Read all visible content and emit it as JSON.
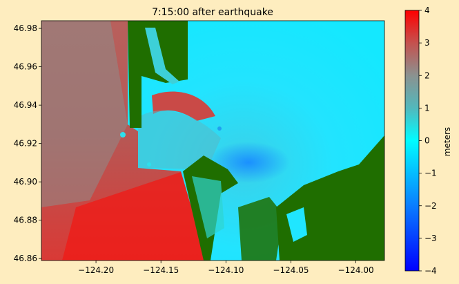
{
  "chart_data": {
    "type": "heatmap",
    "title": "7:15:00 after earthquake",
    "xlabel": "",
    "ylabel": "",
    "xlim": [
      -124.242,
      -123.978
    ],
    "ylim": [
      46.859,
      46.984
    ],
    "x_ticks": [
      -124.2,
      -124.15,
      -124.1,
      -124.05,
      -124.0
    ],
    "x_tick_labels": [
      "−124.20",
      "−124.15",
      "−124.10",
      "−124.05",
      "−124.00"
    ],
    "y_ticks": [
      46.86,
      46.88,
      46.9,
      46.92,
      46.94,
      46.96,
      46.98
    ],
    "y_tick_labels": [
      "46.86",
      "46.88",
      "46.90",
      "46.92",
      "46.94",
      "46.96",
      "46.98"
    ],
    "colorbar": {
      "label": "meters",
      "range": [
        -4,
        4
      ],
      "ticks": [
        -4,
        -3,
        -2,
        -1,
        0,
        1,
        2,
        3,
        4
      ],
      "tick_labels": [
        "−4",
        "−3",
        "−2",
        "−1",
        "0",
        "1",
        "2",
        "3",
        "4"
      ],
      "colormap": [
        {
          "value": -4,
          "color": "#0000ff"
        },
        {
          "value": -2,
          "color": "#0a7dff"
        },
        {
          "value": 0,
          "color": "#00fcff"
        },
        {
          "value": 1,
          "color": "#52b8bc"
        },
        {
          "value": 2,
          "color": "#8b9290"
        },
        {
          "value": 3,
          "color": "#c5514e"
        },
        {
          "value": 4,
          "color": "#ff0000"
        }
      ]
    },
    "land_color": "#1f6e00",
    "regions": [
      {
        "name": "open-ocean",
        "approx_value": 2.6
      },
      {
        "name": "south-beach-ocean",
        "approx_value": 3.6
      },
      {
        "name": "grays-harbor-bay",
        "approx_value": 0.3
      },
      {
        "name": "inner-harbor-channel",
        "approx_value": -0.8
      },
      {
        "name": "north-inlet-shoal",
        "approx_value": 3.0
      }
    ],
    "grid": false,
    "legend": "colorbar-right"
  }
}
